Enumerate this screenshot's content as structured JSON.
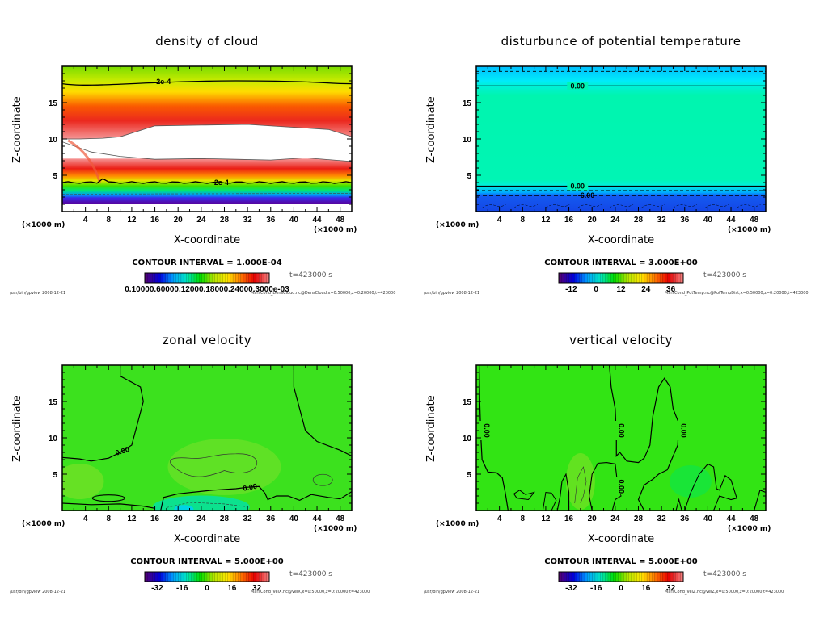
{
  "figure": {
    "panels": [
      {
        "id": "dens-cloud",
        "title": "density of cloud",
        "xlabel": "X-coordinate",
        "ylabel": "Z-coordinate",
        "x_unit": "(×1000 m)",
        "y_unit": "(×1000 m)",
        "contour_interval": "CONTOUR INTERVAL = 1.000E-04",
        "time": "t=423000 s",
        "colorbar_ticks": [
          "0.1000e-03",
          "0.6000e-03",
          "0.1200e-02",
          "0.1800e-02",
          "0.2400e-02",
          "0.3000e-02"
        ],
        "colorbar_label_raw": "0.10000.60000.12000.18000.24000.3000e-03",
        "footer_left": "/usr/bin/gpview   2008-12-21",
        "footer_right": "MarsCond_DensCloud.nc@DensCloud,x=0:50000,z=0:20000,t=423000",
        "contour_labels": [
          "2e-4",
          "2e-4"
        ]
      },
      {
        "id": "pot-temp",
        "title": "disturbunce of potential temperature",
        "xlabel": "X-coordinate",
        "ylabel": "Z-coordinate",
        "x_unit": "(×1000 m)",
        "y_unit": "(×1000 m)",
        "contour_interval": "CONTOUR INTERVAL = 3.000E+00",
        "time": "t=423000 s",
        "colorbar_ticks": [
          "-12",
          "0",
          "12",
          "24",
          "36"
        ],
        "footer_left": "/usr/bin/gpview   2008-12-21",
        "footer_right": "MarsCond_PotTemp.nc@PotTempDist,x=0:50000,z=0:20000,t=423000",
        "contour_labels": [
          "0.00",
          "0.00",
          "-6.00"
        ]
      },
      {
        "id": "vel-x",
        "title": "zonal velocity",
        "xlabel": "X-coordinate",
        "ylabel": "Z-coordinate",
        "x_unit": "(×1000 m)",
        "y_unit": "(×1000 m)",
        "contour_interval": "CONTOUR INTERVAL = 5.000E+00",
        "time": "t=423000 s",
        "colorbar_ticks": [
          "-32",
          "-16",
          "0",
          "16",
          "32"
        ],
        "footer_left": "/usr/bin/gpview   2008-12-21",
        "footer_right": "MarsCond_VelX.nc@VelX,x=0:50000,z=0:20000,t=423000",
        "contour_labels": [
          "0.00",
          "0.00"
        ]
      },
      {
        "id": "vel-z",
        "title": "vertical velocity",
        "xlabel": "X-coordinate",
        "ylabel": "Z-coordinate",
        "x_unit": "(×1000 m)",
        "y_unit": "(×1000 m)",
        "contour_interval": "CONTOUR INTERVAL = 5.000E+00",
        "time": "t=423000 s",
        "colorbar_ticks": [
          "-32",
          "-16",
          "0",
          "16",
          "32"
        ],
        "footer_left": "/usr/bin/gpview   2008-12-21",
        "footer_right": "MarsCond_VelZ.nc@VelZ,x=0:50000,z=0:20000,t=423000",
        "contour_labels": [
          "0.00",
          "0.00",
          "0.00",
          "0.00"
        ]
      }
    ]
  },
  "chart_data": [
    {
      "type": "heatmap",
      "title": "density of cloud",
      "xlabel": "X-coordinate",
      "ylabel": "Z-coordinate",
      "x_units": "×1000 m",
      "y_units": "×1000 m",
      "xlim": [
        0,
        50
      ],
      "ylim": [
        0,
        20
      ],
      "xticks": [
        4,
        8,
        12,
        16,
        20,
        24,
        28,
        32,
        36,
        40,
        44,
        48
      ],
      "yticks": [
        5,
        10,
        15
      ],
      "contour_interval": 0.0001,
      "contour_levels_labeled": [
        {
          "value": "2e-4",
          "z": 17.5
        },
        {
          "value": "2e-4",
          "z": 4.0
        }
      ],
      "bands": [
        {
          "z_from": 0.0,
          "z_to": 1.0,
          "desc": "no data / low"
        },
        {
          "z_from": 1.0,
          "z_to": 2.5,
          "desc": "violet-blue (low)"
        },
        {
          "z_from": 2.5,
          "z_to": 4.0,
          "desc": "cyan-green"
        },
        {
          "z_from": 4.0,
          "z_to": 7.0,
          "desc": "yellow-red (high)"
        },
        {
          "z_from": 7.0,
          "z_to": 12.0,
          "desc": "white (above colorbar max)"
        },
        {
          "z_from": 12.0,
          "z_to": 17.5,
          "desc": "red-orange-yellow"
        },
        {
          "z_from": 17.5,
          "z_to": 20.0,
          "desc": "yellow-green"
        }
      ],
      "colorbar": {
        "range": [
          0.0001,
          0.003
        ],
        "ticks": [
          "0.1000e-03",
          "0.6000e-03",
          "0.1200e-02",
          "0.1800e-02",
          "0.2400e-02",
          "0.3000e-02"
        ]
      },
      "time": "t=423000 s"
    },
    {
      "type": "heatmap",
      "title": "disturbunce of potential temperature",
      "xlabel": "X-coordinate",
      "ylabel": "Z-coordinate",
      "xlim": [
        0,
        50
      ],
      "ylim": [
        0,
        20
      ],
      "xticks": [
        4,
        8,
        12,
        16,
        20,
        24,
        28,
        32,
        36,
        40,
        44,
        48
      ],
      "yticks": [
        5,
        10,
        15
      ],
      "contour_interval": 3.0,
      "contour_levels_labeled": [
        {
          "value": "0.00",
          "z": 17.3
        },
        {
          "value": "0.00",
          "z": 3.5
        },
        {
          "value": "-6.00",
          "z": 2.2
        }
      ],
      "colorbar": {
        "range": [
          -18,
          42
        ],
        "ticks": [
          -12,
          0,
          12,
          24,
          36
        ]
      },
      "time": "t=423000 s"
    },
    {
      "type": "heatmap",
      "title": "zonal velocity",
      "xlabel": "X-coordinate",
      "ylabel": "Z-coordinate",
      "xlim": [
        0,
        50
      ],
      "ylim": [
        0,
        20
      ],
      "xticks": [
        4,
        8,
        12,
        16,
        20,
        24,
        28,
        32,
        36,
        40,
        44,
        48
      ],
      "yticks": [
        5,
        10,
        15
      ],
      "contour_interval": 5.0,
      "contour_levels_labeled": [
        {
          "value": "0.00",
          "x": 10,
          "z": 8
        },
        {
          "value": "0.00",
          "x": 32,
          "z": 3
        }
      ],
      "colorbar": {
        "range": [
          -40,
          40
        ],
        "ticks": [
          -32,
          -16,
          0,
          16,
          32
        ]
      },
      "time": "t=423000 s"
    },
    {
      "type": "heatmap",
      "title": "vertical velocity",
      "xlabel": "X-coordinate",
      "ylabel": "Z-coordinate",
      "xlim": [
        0,
        50
      ],
      "ylim": [
        0,
        20
      ],
      "xticks": [
        4,
        8,
        12,
        16,
        20,
        24,
        28,
        32,
        36,
        40,
        44,
        48
      ],
      "yticks": [
        5,
        10,
        15
      ],
      "contour_interval": 5.0,
      "contour_levels_labeled": [
        {
          "value": "0.00",
          "x": 1,
          "z": 11
        },
        {
          "value": "0.00",
          "x": 24,
          "z": 11
        },
        {
          "value": "0.00",
          "x": 35,
          "z": 11
        },
        {
          "value": "0.00",
          "x": 24,
          "z": 3
        }
      ],
      "colorbar": {
        "range": [
          -40,
          40
        ],
        "ticks": [
          -32,
          -16,
          0,
          16,
          32
        ]
      },
      "time": "t=423000 s"
    }
  ]
}
